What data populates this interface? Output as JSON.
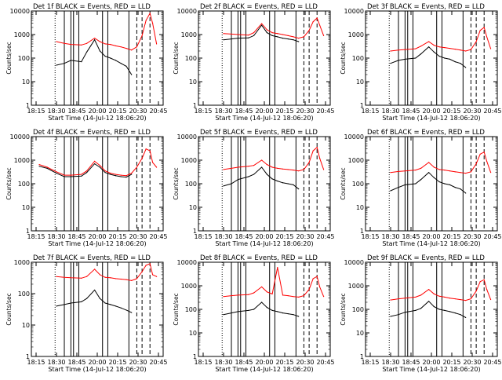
{
  "figure": {
    "xlabel": "Start Time (14-Jul-12 18:06:20)",
    "ylabel": "Counts/sec",
    "colors": {
      "events": "#000000",
      "lld": "#ff0000",
      "marker": "#000000"
    }
  },
  "chart_data": [
    {
      "type": "line",
      "title": "Det 1f BLACK = Events, RED = LLD",
      "xlabel": "Start Time (14-Jul-12 18:06:20)",
      "ylabel": "Counts/sec",
      "ylim": [
        1,
        10000
      ],
      "yscale": "log",
      "x_ticks": [
        "18:15",
        "18:30",
        "18:45",
        "20:00",
        "20:15",
        "20:30",
        "20:45"
      ],
      "y_ticks": [
        "1",
        "10",
        "100",
        "1000",
        "10000"
      ],
      "series": [
        {
          "name": "BLACK = Events",
          "color": "#000000",
          "x": [
            0.19,
            0.25,
            0.3,
            0.38,
            0.42,
            0.48,
            0.52,
            0.56,
            0.6,
            0.64,
            0.68,
            0.72,
            0.76
          ],
          "y": [
            50,
            60,
            80,
            70,
            180,
            600,
            200,
            120,
            100,
            80,
            60,
            45,
            20
          ]
        },
        {
          "name": "RED = LLD",
          "color": "#ff0000",
          "x": [
            0.19,
            0.25,
            0.3,
            0.38,
            0.42,
            0.48,
            0.52,
            0.56,
            0.6,
            0.64,
            0.68,
            0.72,
            0.76,
            0.8,
            0.84,
            0.87,
            0.9,
            0.92,
            0.95
          ],
          "y": [
            500,
            420,
            380,
            360,
            420,
            700,
            500,
            400,
            380,
            330,
            300,
            260,
            220,
            300,
            900,
            4000,
            8000,
            3000,
            400
          ]
        }
      ]
    },
    {
      "type": "line",
      "title": "Det 2f BLACK = Events, RED = LLD",
      "xlabel": "Start Time (14-Jul-12 18:06:20)",
      "ylabel": "Counts/sec",
      "ylim": [
        1,
        10000
      ],
      "yscale": "log",
      "x_ticks": [
        "18:15",
        "18:30",
        "18:45",
        "20:00",
        "20:15",
        "20:30",
        "20:45"
      ],
      "y_ticks": [
        "1",
        "10",
        "100",
        "1000",
        "10000"
      ],
      "series": [
        {
          "name": "BLACK = Events",
          "color": "#000000",
          "x": [
            0.19,
            0.25,
            0.3,
            0.38,
            0.42,
            0.48,
            0.52,
            0.56,
            0.6,
            0.64,
            0.68,
            0.72,
            0.76
          ],
          "y": [
            600,
            650,
            700,
            720,
            900,
            2500,
            1200,
            900,
            800,
            700,
            650,
            600,
            500
          ]
        },
        {
          "name": "RED = LLD",
          "color": "#ff0000",
          "x": [
            0.19,
            0.25,
            0.3,
            0.38,
            0.42,
            0.48,
            0.52,
            0.56,
            0.6,
            0.64,
            0.68,
            0.72,
            0.76,
            0.8,
            0.84,
            0.87,
            0.9,
            0.92,
            0.95
          ],
          "y": [
            1100,
            1050,
            1000,
            950,
            1200,
            2900,
            1600,
            1200,
            1100,
            1000,
            900,
            800,
            700,
            800,
            1500,
            3500,
            5000,
            2500,
            900
          ]
        }
      ]
    },
    {
      "type": "line",
      "title": "Det 3f BLACK = Events, RED = LLD",
      "xlabel": "Start Time (14-Jul-12 18:06:20)",
      "ylabel": "Counts/sec",
      "ylim": [
        1,
        10000
      ],
      "yscale": "log",
      "x_ticks": [
        "18:15",
        "18:30",
        "18:45",
        "20:00",
        "20:15",
        "20:30",
        "20:45"
      ],
      "y_ticks": [
        "1",
        "10",
        "100",
        "1000",
        "10000"
      ],
      "series": [
        {
          "name": "BLACK = Events",
          "color": "#000000",
          "x": [
            0.19,
            0.25,
            0.3,
            0.38,
            0.42,
            0.48,
            0.52,
            0.56,
            0.6,
            0.64,
            0.68,
            0.72,
            0.76
          ],
          "y": [
            60,
            80,
            90,
            100,
            150,
            300,
            180,
            120,
            100,
            90,
            70,
            60,
            40
          ]
        },
        {
          "name": "RED = LLD",
          "color": "#ff0000",
          "x": [
            0.19,
            0.25,
            0.3,
            0.38,
            0.42,
            0.48,
            0.52,
            0.56,
            0.6,
            0.64,
            0.68,
            0.72,
            0.76,
            0.8,
            0.84,
            0.87,
            0.9,
            0.92,
            0.95
          ],
          "y": [
            200,
            220,
            230,
            250,
            320,
            500,
            350,
            300,
            280,
            260,
            240,
            220,
            200,
            230,
            500,
            1500,
            2000,
            800,
            250
          ]
        }
      ]
    },
    {
      "type": "line",
      "title": "Det 4f BLACK = Events, RED = LLD",
      "xlabel": "Start Time (14-Jul-12 18:06:20)",
      "ylabel": "Counts/sec",
      "ylim": [
        1,
        10000
      ],
      "yscale": "log",
      "x_ticks": [
        "18:15",
        "18:30",
        "18:45",
        "20:00",
        "20:15",
        "20:30",
        "20:45"
      ],
      "y_ticks": [
        "1",
        "10",
        "100",
        "1000",
        "10000"
      ],
      "series": [
        {
          "name": "BLACK = Events",
          "color": "#000000",
          "x": [
            0.06,
            0.12,
            0.19,
            0.25,
            0.3,
            0.38,
            0.42,
            0.48,
            0.52,
            0.56,
            0.6,
            0.64,
            0.68,
            0.72,
            0.76
          ],
          "y": [
            550,
            450,
            280,
            200,
            200,
            210,
            300,
            700,
            500,
            300,
            250,
            220,
            200,
            190,
            250
          ]
        },
        {
          "name": "RED = LLD",
          "color": "#ff0000",
          "x": [
            0.06,
            0.12,
            0.19,
            0.25,
            0.3,
            0.38,
            0.42,
            0.48,
            0.52,
            0.56,
            0.6,
            0.64,
            0.68,
            0.72,
            0.76,
            0.8,
            0.84,
            0.87,
            0.9,
            0.92,
            0.95
          ],
          "y": [
            650,
            500,
            320,
            230,
            230,
            250,
            350,
            900,
            600,
            350,
            280,
            250,
            230,
            220,
            280,
            500,
            1200,
            3000,
            2500,
            800,
            500
          ]
        }
      ]
    },
    {
      "type": "line",
      "title": "Det 5f BLACK = Events, RED = LLD",
      "xlabel": "Start Time (14-Jul-12 18:06:20)",
      "ylabel": "Counts/sec",
      "ylim": [
        1,
        10000
      ],
      "yscale": "log",
      "x_ticks": [
        "18:15",
        "18:30",
        "18:45",
        "20:00",
        "20:15",
        "20:30",
        "20:45"
      ],
      "y_ticks": [
        "1",
        "10",
        "100",
        "1000",
        "10000"
      ],
      "series": [
        {
          "name": "BLACK = Events",
          "color": "#000000",
          "x": [
            0.19,
            0.25,
            0.3,
            0.38,
            0.42,
            0.48,
            0.52,
            0.56,
            0.6,
            0.64,
            0.68,
            0.72,
            0.76
          ],
          "y": [
            80,
            100,
            150,
            200,
            250,
            500,
            250,
            160,
            130,
            110,
            100,
            90,
            60
          ]
        },
        {
          "name": "RED = LLD",
          "color": "#ff0000",
          "x": [
            0.19,
            0.25,
            0.3,
            0.38,
            0.42,
            0.48,
            0.52,
            0.56,
            0.6,
            0.64,
            0.68,
            0.72,
            0.76,
            0.8,
            0.84,
            0.87,
            0.9,
            0.92,
            0.95
          ],
          "y": [
            400,
            450,
            500,
            550,
            600,
            1000,
            650,
            500,
            450,
            420,
            400,
            380,
            350,
            400,
            800,
            2500,
            3500,
            1200,
            400
          ]
        }
      ]
    },
    {
      "type": "line",
      "title": "Det 6f BLACK = Events, RED = LLD",
      "xlabel": "Start Time (14-Jul-12 18:06:20)",
      "ylabel": "Counts/sec",
      "ylim": [
        1,
        10000
      ],
      "yscale": "log",
      "x_ticks": [
        "18:15",
        "18:30",
        "18:45",
        "20:00",
        "20:15",
        "20:30",
        "20:45"
      ],
      "y_ticks": [
        "1",
        "10",
        "100",
        "1000",
        "10000"
      ],
      "series": [
        {
          "name": "BLACK = Events",
          "color": "#000000",
          "x": [
            0.19,
            0.25,
            0.3,
            0.38,
            0.42,
            0.48,
            0.52,
            0.56,
            0.6,
            0.64,
            0.68,
            0.72,
            0.76
          ],
          "y": [
            50,
            70,
            90,
            100,
            150,
            300,
            180,
            120,
            100,
            90,
            70,
            60,
            40
          ]
        },
        {
          "name": "RED = LLD",
          "color": "#ff0000",
          "x": [
            0.19,
            0.25,
            0.3,
            0.38,
            0.42,
            0.48,
            0.52,
            0.56,
            0.6,
            0.64,
            0.68,
            0.72,
            0.76,
            0.8,
            0.84,
            0.87,
            0.9,
            0.92,
            0.95
          ],
          "y": [
            300,
            330,
            350,
            380,
            450,
            800,
            500,
            400,
            380,
            350,
            320,
            300,
            280,
            320,
            700,
            1800,
            2200,
            900,
            300
          ]
        }
      ]
    },
    {
      "type": "line",
      "title": "Det 7f BLACK = Events, RED = LLD",
      "xlabel": "Start Time (14-Jul-12 18:06:20)",
      "ylabel": "Counts/sec",
      "ylim": [
        1,
        1000
      ],
      "yscale": "log",
      "x_ticks": [
        "18:15",
        "18:30",
        "18:45",
        "20:00",
        "20:15",
        "20:30",
        "20:45"
      ],
      "y_ticks": [
        "1",
        "10",
        "100",
        "1000"
      ],
      "series": [
        {
          "name": "BLACK = Events",
          "color": "#000000",
          "x": [
            0.19,
            0.25,
            0.3,
            0.38,
            0.42,
            0.48,
            0.52,
            0.56,
            0.6,
            0.64,
            0.68,
            0.72,
            0.76
          ],
          "y": [
            40,
            45,
            50,
            55,
            70,
            130,
            70,
            50,
            45,
            40,
            35,
            30,
            25
          ]
        },
        {
          "name": "RED = LLD",
          "color": "#ff0000",
          "x": [
            0.19,
            0.25,
            0.3,
            0.38,
            0.42,
            0.48,
            0.52,
            0.56,
            0.6,
            0.64,
            0.68,
            0.72,
            0.76,
            0.8,
            0.84,
            0.87,
            0.9,
            0.92,
            0.95
          ],
          "y": [
            350,
            330,
            320,
            310,
            350,
            600,
            400,
            330,
            320,
            300,
            290,
            280,
            260,
            300,
            500,
            800,
            900,
            400,
            350
          ]
        }
      ]
    },
    {
      "type": "line",
      "title": "Det 8f BLACK = Events, RED = LLD",
      "xlabel": "Start Time (14-Jul-12 18:06:20)",
      "ylabel": "Counts/sec",
      "ylim": [
        1,
        10000
      ],
      "yscale": "log",
      "x_ticks": [
        "18:15",
        "18:30",
        "18:45",
        "20:00",
        "20:15",
        "20:30",
        "20:45"
      ],
      "y_ticks": [
        "1",
        "10",
        "100",
        "1000",
        "10000"
      ],
      "series": [
        {
          "name": "BLACK = Events",
          "color": "#000000",
          "x": [
            0.19,
            0.25,
            0.3,
            0.38,
            0.42,
            0.48,
            0.52,
            0.56,
            0.6,
            0.64,
            0.68,
            0.72,
            0.76
          ],
          "y": [
            60,
            70,
            80,
            90,
            100,
            200,
            120,
            90,
            80,
            70,
            65,
            60,
            50
          ]
        },
        {
          "name": "RED = LLD",
          "color": "#ff0000",
          "x": [
            0.19,
            0.25,
            0.3,
            0.38,
            0.42,
            0.48,
            0.52,
            0.56,
            0.6,
            0.64,
            0.68,
            0.72,
            0.76,
            0.8,
            0.84,
            0.87,
            0.9,
            0.92,
            0.95
          ],
          "y": [
            350,
            380,
            400,
            420,
            500,
            900,
            550,
            450,
            6000,
            400,
            380,
            350,
            330,
            380,
            700,
            2000,
            2500,
            900,
            350
          ]
        }
      ]
    },
    {
      "type": "line",
      "title": "Det 9f BLACK = Events, RED = LLD",
      "xlabel": "Start Time (14-Jul-12 18:06:20)",
      "ylabel": "Counts/sec",
      "ylim": [
        1,
        10000
      ],
      "yscale": "log",
      "x_ticks": [
        "18:15",
        "18:30",
        "18:45",
        "20:00",
        "20:15",
        "20:30",
        "20:45"
      ],
      "y_ticks": [
        "1",
        "10",
        "100",
        "1000",
        "10000"
      ],
      "series": [
        {
          "name": "BLACK = Events",
          "color": "#000000",
          "x": [
            0.19,
            0.25,
            0.3,
            0.38,
            0.42,
            0.48,
            0.52,
            0.56,
            0.6,
            0.64,
            0.68,
            0.72,
            0.76
          ],
          "y": [
            50,
            60,
            75,
            90,
            110,
            220,
            130,
            100,
            90,
            80,
            70,
            60,
            45
          ]
        },
        {
          "name": "RED = LLD",
          "color": "#ff0000",
          "x": [
            0.19,
            0.25,
            0.3,
            0.38,
            0.42,
            0.48,
            0.52,
            0.56,
            0.6,
            0.64,
            0.68,
            0.72,
            0.76,
            0.8,
            0.84,
            0.87,
            0.9,
            0.92,
            0.95
          ],
          "y": [
            250,
            280,
            300,
            330,
            400,
            700,
            450,
            360,
            330,
            300,
            280,
            260,
            240,
            280,
            600,
            1500,
            1800,
            700,
            260
          ]
        }
      ]
    }
  ]
}
